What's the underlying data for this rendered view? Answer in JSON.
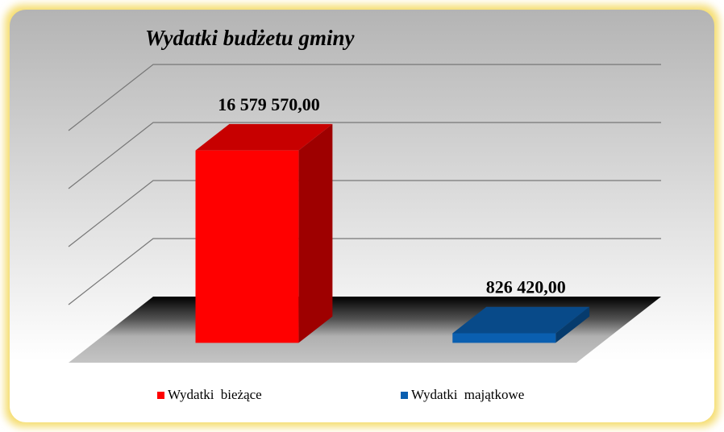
{
  "chart_data": {
    "type": "bar",
    "title": "Wydatki budżetu gminy",
    "categories": [
      null
    ],
    "series": [
      {
        "name": "Wydatki bieżące",
        "color": "#ff0000",
        "values": [
          16579570
        ],
        "value_labels": [
          "16 579 570,00"
        ]
      },
      {
        "name": "Wydatki majątkowe",
        "color": "#0a5fb0",
        "values": [
          826420
        ],
        "value_labels": [
          "826 420,00"
        ]
      }
    ],
    "ylim": [
      0,
      20000000
    ],
    "yticks": [
      0,
      5000000,
      10000000,
      15000000,
      20000000
    ],
    "grid": true,
    "legend": "bottom"
  }
}
